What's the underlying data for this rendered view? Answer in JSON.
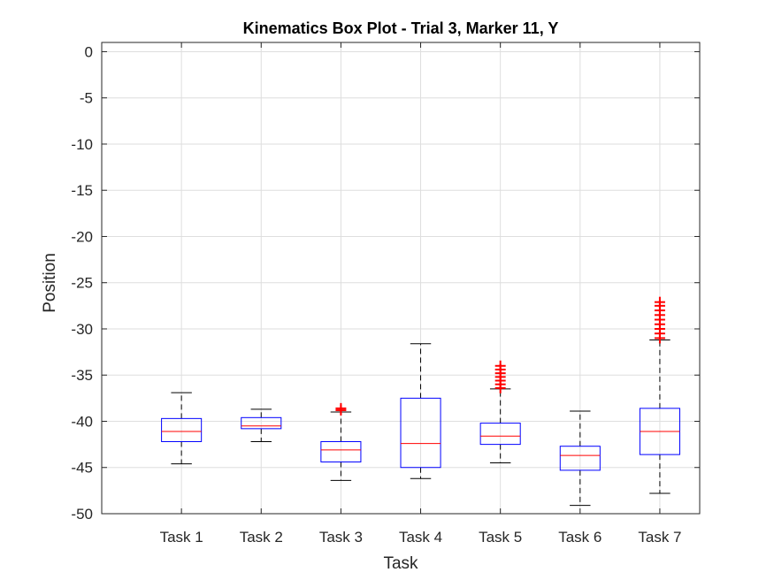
{
  "chart_data": {
    "type": "boxplot",
    "title": "Kinematics Box Plot - Trial 3, Marker 11, Y",
    "xlabel": "Task",
    "ylabel": "Position",
    "ylim": [
      -50,
      1
    ],
    "yticks": [
      0,
      -5,
      -10,
      -15,
      -20,
      -25,
      -30,
      -35,
      -40,
      -45,
      -50
    ],
    "grid": true,
    "categories": [
      "Task 1",
      "Task 2",
      "Task 3",
      "Task 4",
      "Task 5",
      "Task 6",
      "Task 7"
    ],
    "boxes": [
      {
        "q1": -42.2,
        "median": -41.1,
        "q3": -39.7,
        "whisker_low": -44.6,
        "whisker_high": -36.9,
        "outliers": []
      },
      {
        "q1": -40.8,
        "median": -40.5,
        "q3": -39.6,
        "whisker_low": -42.2,
        "whisker_high": -38.7,
        "outliers": []
      },
      {
        "q1": -44.4,
        "median": -43.1,
        "q3": -42.2,
        "whisker_low": -46.4,
        "whisker_high": -39.0,
        "outliers": [
          -38.6,
          -38.8
        ]
      },
      {
        "q1": -45.0,
        "median": -42.4,
        "q3": -37.5,
        "whisker_low": -46.2,
        "whisker_high": -31.6,
        "outliers": []
      },
      {
        "q1": -42.5,
        "median": -41.6,
        "q3": -40.2,
        "whisker_low": -44.5,
        "whisker_high": -36.5,
        "outliers": [
          -34.0,
          -34.4,
          -34.8,
          -35.2,
          -35.6,
          -36.0,
          -36.4
        ]
      },
      {
        "q1": -45.3,
        "median": -43.7,
        "q3": -42.7,
        "whisker_low": -49.1,
        "whisker_high": -38.9,
        "outliers": []
      },
      {
        "q1": -43.6,
        "median": -41.1,
        "q3": -38.6,
        "whisker_low": -47.8,
        "whisker_high": -31.2,
        "outliers": [
          -27.1,
          -27.5,
          -28.0,
          -28.5,
          -29.0,
          -29.5,
          -30.0,
          -30.5,
          -31.0
        ]
      }
    ],
    "colors": {
      "box": "#0000ff",
      "median": "#ff0000",
      "whisker": "#000000",
      "outlier": "#ff0000",
      "grid": "#dedede",
      "axis": "#262626"
    }
  }
}
